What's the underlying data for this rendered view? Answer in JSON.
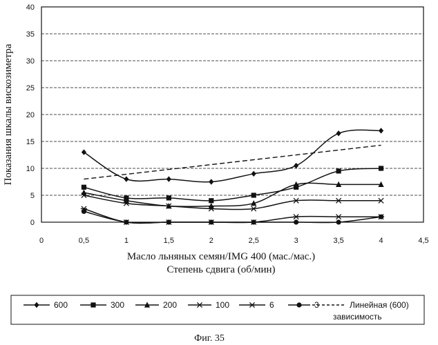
{
  "chart_data": {
    "type": "line",
    "title": "",
    "xlabel_line1": "Масло льняных семян/IMG 400 (мас./мас.)",
    "xlabel_line2": "Степень сдвига (об/мин)",
    "ylabel": "Показания шкалы вискозиметра",
    "x_ticks": [
      "0",
      "0,5",
      "1",
      "1,5",
      "2",
      "2,5",
      "3",
      "3,5",
      "4",
      "4,5"
    ],
    "y_ticks": [
      "0",
      "5",
      "10",
      "15",
      "20",
      "25",
      "30",
      "35",
      "40"
    ],
    "xlim": [
      0,
      4.5
    ],
    "ylim": [
      0,
      40
    ],
    "x": [
      0.5,
      1,
      1.5,
      2,
      2.5,
      3,
      3.5,
      4
    ],
    "grid": "horizontal dashed",
    "series": [
      {
        "name": "600",
        "marker": "diamond",
        "values": [
          13,
          8,
          8,
          7.5,
          9,
          10.5,
          16.5,
          17
        ]
      },
      {
        "name": "300",
        "marker": "square",
        "values": [
          6.5,
          4.5,
          4.5,
          4,
          5,
          6.5,
          9.5,
          10
        ]
      },
      {
        "name": "200",
        "marker": "triangle",
        "values": [
          5.5,
          4,
          3,
          3,
          3.5,
          7,
          7,
          7
        ]
      },
      {
        "name": "100",
        "marker": "x",
        "values": [
          5,
          3.5,
          3,
          2.5,
          2.5,
          4,
          4,
          4
        ]
      },
      {
        "name": "6",
        "marker": "asterisk",
        "values": [
          2.5,
          0,
          0,
          0,
          0,
          1,
          1,
          1
        ]
      },
      {
        "name": "3",
        "marker": "circle",
        "values": [
          2,
          0,
          0,
          0,
          0,
          0,
          0,
          1
        ]
      }
    ],
    "trendline": {
      "name": "Линейная (600)",
      "name_line2": "зависимость",
      "values": [
        8,
        8.9,
        9.8,
        10.7,
        11.6,
        12.5,
        13.4,
        14.3
      ]
    },
    "legend_position": "bottom",
    "caption": "Фиг. 35"
  },
  "colors": {
    "line": "#111111",
    "background": "#ffffff"
  }
}
